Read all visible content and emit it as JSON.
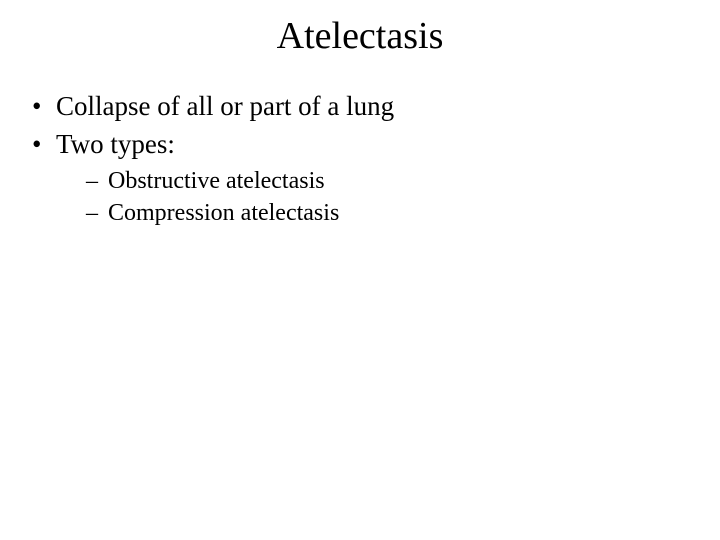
{
  "slide": {
    "background_color": "#ffffff",
    "text_color": "#000000",
    "font_family": "Times New Roman",
    "title": {
      "text": "Atelectasis",
      "fontsize": 38,
      "align": "center"
    },
    "bullets": {
      "lvl1_fontsize": 27,
      "lvl2_fontsize": 24,
      "lvl1_marker": "•",
      "lvl2_marker": "–",
      "items": [
        {
          "text": "Collapse of all or part of a lung",
          "level": 1
        },
        {
          "text": "Two types:",
          "level": 1
        },
        {
          "text": "Obstructive atelectasis",
          "level": 2
        },
        {
          "text": "Compression atelectasis",
          "level": 2
        }
      ]
    }
  }
}
